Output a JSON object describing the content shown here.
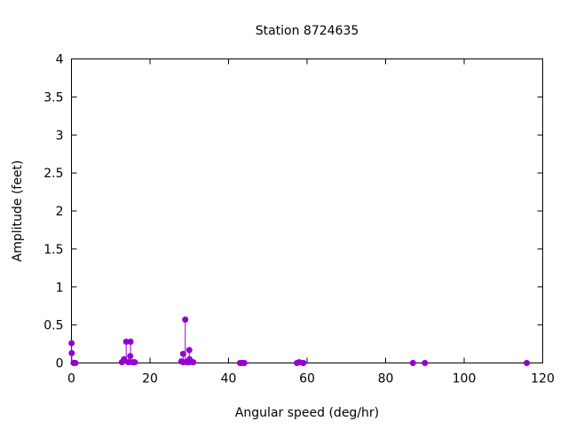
{
  "chart_data": {
    "type": "stem",
    "title": "Station 8724635",
    "xlabel": "Angular speed (deg/hr)",
    "ylabel": "Amplitude (feet)",
    "xlim": [
      0,
      120
    ],
    "ylim": [
      0,
      4
    ],
    "xticks": [
      "0",
      "20",
      "40",
      "60",
      "80",
      "100",
      "120"
    ],
    "yticks": [
      "0",
      "0.5",
      "1",
      "1.5",
      "2",
      "2.5",
      "3",
      "3.5",
      "4"
    ],
    "grid": false,
    "color": "#9400d3",
    "points": [
      [
        0.04,
        0.26
      ],
      [
        0.08,
        0.13
      ],
      [
        0.54,
        0.0
      ],
      [
        1.02,
        0.0
      ],
      [
        12.85,
        0.01
      ],
      [
        13.4,
        0.05
      ],
      [
        13.94,
        0.28
      ],
      [
        14.5,
        0.01
      ],
      [
        14.96,
        0.09
      ],
      [
        15.04,
        0.28
      ],
      [
        15.59,
        0.01
      ],
      [
        16.14,
        0.01
      ],
      [
        27.97,
        0.02
      ],
      [
        28.44,
        0.12
      ],
      [
        28.51,
        0.01
      ],
      [
        28.98,
        0.57
      ],
      [
        29.46,
        0.01
      ],
      [
        29.53,
        0.02
      ],
      [
        29.96,
        0.01
      ],
      [
        30.0,
        0.17
      ],
      [
        30.08,
        0.05
      ],
      [
        31.02,
        0.01
      ],
      [
        42.93,
        0.0
      ],
      [
        43.48,
        0.0
      ],
      [
        44.03,
        0.0
      ],
      [
        57.42,
        0.0
      ],
      [
        57.97,
        0.01
      ],
      [
        58.98,
        0.0
      ],
      [
        59.07,
        0.0
      ],
      [
        86.95,
        0.0
      ],
      [
        90.0,
        0.0
      ],
      [
        115.94,
        0.0
      ]
    ]
  }
}
